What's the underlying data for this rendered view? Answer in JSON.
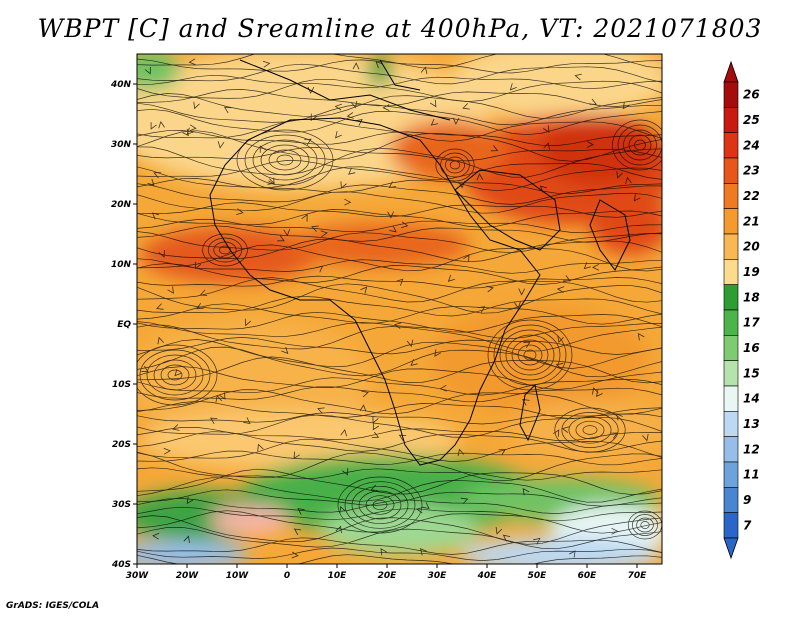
{
  "title": "WBPT [C] and Sreamline at 400hPa, VT: 2021071803",
  "credit": "GrADS: IGES/COLA",
  "map": {
    "lon_ticks": [
      "30W",
      "20W",
      "10W",
      "0",
      "10E",
      "20E",
      "30E",
      "40E",
      "50E",
      "60E",
      "70E"
    ],
    "lat_ticks": [
      "40N",
      "30N",
      "20N",
      "10N",
      "EQ",
      "10S",
      "20S",
      "30S",
      "40S"
    ]
  },
  "colorbar": {
    "labels": [
      "26",
      "25",
      "24",
      "23",
      "22",
      "21",
      "20",
      "19",
      "18",
      "17",
      "16",
      "15",
      "14",
      "13",
      "12",
      "11",
      "9",
      "7"
    ],
    "colors": [
      "#a50c0c",
      "#c81a10",
      "#dc3414",
      "#e8561a",
      "#f07a22",
      "#f59a2e",
      "#f8b854",
      "#fbdc8c",
      "#2e9e34",
      "#4cb54a",
      "#7fcb72",
      "#b6e2ac",
      "#e8f6f4",
      "#bcd8f2",
      "#96bee8",
      "#6ea2dc",
      "#4886d2",
      "#2a66c8"
    ]
  }
}
